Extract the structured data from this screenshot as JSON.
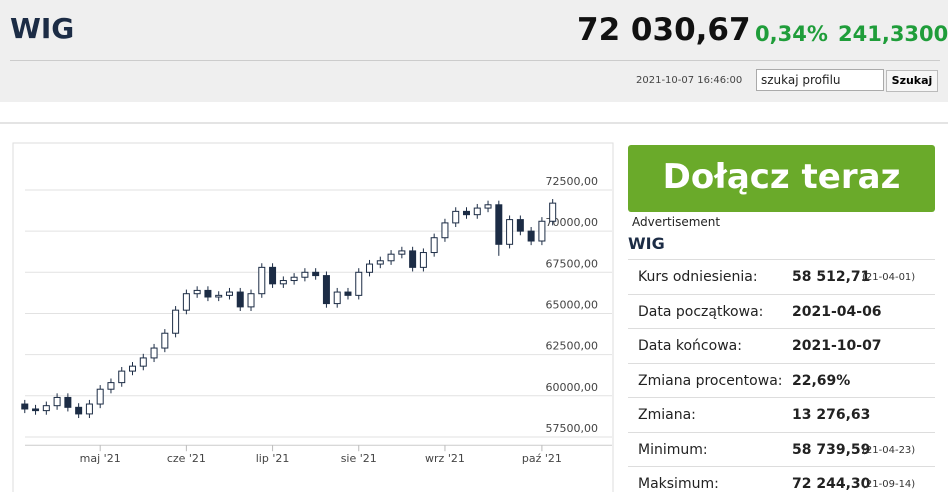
{
  "header": {
    "title": "WIG",
    "price": "72 030,67",
    "change_pct": "0,34%",
    "change": "241,3300",
    "timestamp": "2021-10-07 16:46:00",
    "search_placeholder": "szukaj profilu",
    "search_button": "Szukaj"
  },
  "chart_data": {
    "type": "candlestick",
    "x": [
      0,
      1,
      2,
      3,
      4,
      5,
      6,
      7,
      8,
      9,
      10,
      11,
      12,
      13,
      14,
      15,
      16,
      17,
      18,
      19,
      20,
      21,
      22,
      23,
      24,
      25,
      26,
      27,
      28,
      29,
      30,
      31,
      32,
      33,
      34,
      35,
      36,
      37,
      38,
      39,
      40,
      41,
      42,
      43,
      44,
      45,
      46,
      47,
      48,
      49
    ],
    "open": [
      59500,
      59200,
      59100,
      59400,
      59900,
      59300,
      58900,
      59500,
      60400,
      60800,
      61500,
      61800,
      62300,
      62900,
      63800,
      65200,
      66200,
      66400,
      66000,
      66100,
      66300,
      65400,
      66200,
      67800,
      66800,
      67000,
      67200,
      67500,
      67300,
      65600,
      66300,
      66100,
      67500,
      68000,
      68200,
      68600,
      68800,
      67800,
      68700,
      69600,
      70500,
      71200,
      71000,
      71400,
      71600,
      69200,
      70700,
      70000,
      69400,
      70600
    ],
    "high": [
      59750,
      59450,
      59650,
      60150,
      60150,
      59550,
      59750,
      60650,
      61050,
      61750,
      62050,
      62550,
      63150,
      64050,
      65450,
      66450,
      66650,
      66650,
      66350,
      66550,
      66550,
      66450,
      68050,
      68050,
      67250,
      67450,
      67750,
      67750,
      67550,
      66550,
      66550,
      67750,
      68250,
      68450,
      68850,
      69050,
      69050,
      68950,
      69850,
      70750,
      71450,
      71450,
      71650,
      71850,
      71850,
      70950,
      70950,
      70250,
      70850,
      71950
    ],
    "low": [
      58950,
      58850,
      58850,
      59150,
      59050,
      58650,
      58650,
      59250,
      60150,
      60550,
      61250,
      61550,
      62050,
      62650,
      63550,
      64950,
      65950,
      65750,
      65750,
      65850,
      65150,
      65150,
      65950,
      66550,
      66550,
      66750,
      66950,
      67050,
      65350,
      65350,
      65850,
      65850,
      67250,
      67750,
      67950,
      68350,
      67550,
      67550,
      68450,
      69350,
      70250,
      70750,
      70750,
      71150,
      68500,
      68950,
      69750,
      69150,
      69150,
      70350
    ],
    "close": [
      59200,
      59100,
      59400,
      59900,
      59300,
      58900,
      59500,
      60400,
      60800,
      61500,
      61800,
      62300,
      62900,
      63800,
      65200,
      66200,
      66400,
      66000,
      66100,
      66300,
      65400,
      66200,
      67800,
      66800,
      67000,
      67200,
      67500,
      67300,
      65600,
      66300,
      66100,
      67500,
      68000,
      68200,
      68600,
      68800,
      67800,
      68700,
      69600,
      70500,
      71200,
      71000,
      71400,
      71600,
      69200,
      70700,
      70000,
      69400,
      70600,
      71700
    ],
    "up_color": "#ffffff",
    "down_color": "#1c2c45",
    "wick_color": "#1c2c45",
    "xlim": [
      -1,
      52
    ],
    "xticks": [
      {
        "value": 7,
        "label": "maj '21"
      },
      {
        "value": 15,
        "label": "cze '21"
      },
      {
        "value": 23,
        "label": "lip '21"
      },
      {
        "value": 31,
        "label": "sie '21"
      },
      {
        "value": 39,
        "label": "wrz '21"
      },
      {
        "value": 48,
        "label": "paź '21"
      }
    ],
    "ylim": [
      57000,
      75000
    ],
    "yticks": [
      {
        "value": 57500,
        "label": "57500,00"
      },
      {
        "value": 60000,
        "label": "60000,00"
      },
      {
        "value": 62500,
        "label": "62500,00"
      },
      {
        "value": 65000,
        "label": "65000,00"
      },
      {
        "value": 67500,
        "label": "67500,00"
      },
      {
        "value": 70000,
        "label": "70000,00"
      },
      {
        "value": 72500,
        "label": "72500,00"
      }
    ],
    "grid": true
  },
  "sidebar": {
    "cta": "Dołącz teraz",
    "ad": "Advertisement",
    "title": "WIG",
    "rows": [
      {
        "label": "Kurs odniesienia:",
        "value": "58 512,71",
        "date": "(21-04-01)"
      },
      {
        "label": "Data początkowa:",
        "value": "2021-04-06"
      },
      {
        "label": "Data końcowa:",
        "value": "2021-10-07"
      },
      {
        "label": "Zmiana procentowa:",
        "value": "22,69%"
      },
      {
        "label": "Zmiana:",
        "value": "13 276,63"
      },
      {
        "label": "Minimum:",
        "value": "58 739,59",
        "date": "(21-04-23)"
      },
      {
        "label": "Maksimum:",
        "value": "72 244,30",
        "date": "(21-09-14)"
      }
    ]
  }
}
